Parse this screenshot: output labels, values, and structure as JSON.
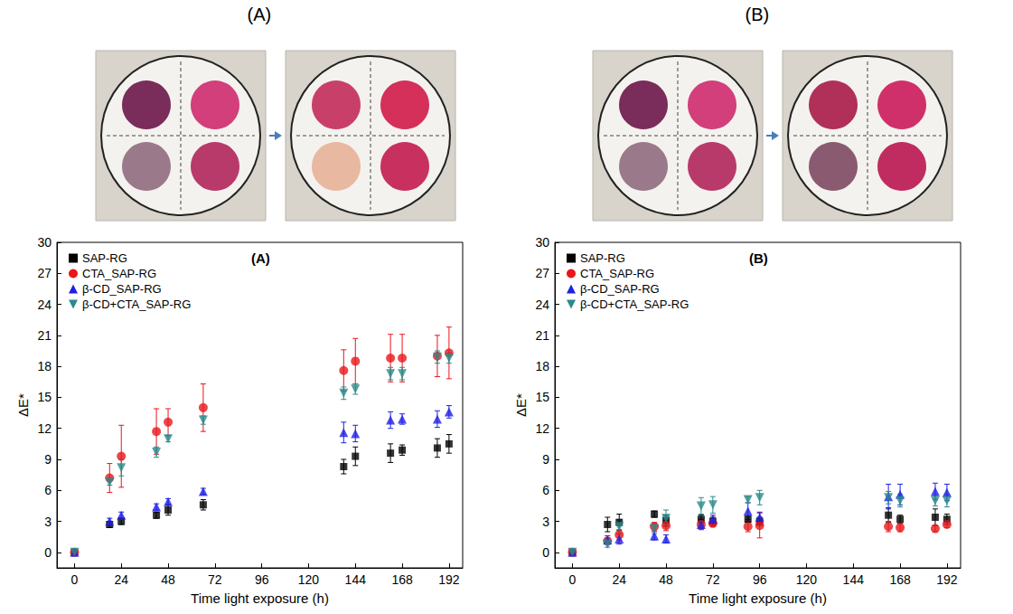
{
  "chart_data": [
    {
      "type": "scatter",
      "title": "(A)",
      "annotations": [
        "(A)"
      ],
      "x_label": "Time light exposure (h)",
      "y_label": "ΔE*",
      "x": [
        0,
        18,
        24,
        42,
        48,
        66,
        138,
        144,
        162,
        168,
        186,
        192
      ],
      "xlim": [
        -9,
        199
      ],
      "xticks": [
        0,
        24,
        48,
        72,
        96,
        120,
        144,
        168,
        192
      ],
      "ylim": [
        -1.5,
        30
      ],
      "yticks": [
        0,
        3,
        6,
        9,
        12,
        15,
        18,
        21,
        24,
        27,
        30
      ],
      "grid": false,
      "legend": "upper left",
      "series": [
        {
          "name": "SAP-RG",
          "color": "#000000",
          "marker": "square",
          "values": [
            0,
            2.7,
            3.0,
            3.6,
            4.1,
            4.6,
            8.3,
            9.3,
            9.6,
            9.9,
            10.1,
            10.5
          ],
          "errors": [
            0,
            0.3,
            0.3,
            0.3,
            0.5,
            0.5,
            0.7,
            0.9,
            0.9,
            0.5,
            0.9,
            0.9
          ]
        },
        {
          "name": "CTA_SAP-RG",
          "color": "#e8161b",
          "marker": "circle",
          "values": [
            0,
            7.2,
            9.3,
            11.7,
            12.6,
            14.0,
            17.6,
            18.5,
            18.8,
            18.8,
            19.0,
            19.3
          ],
          "errors": [
            0,
            1.4,
            3.0,
            2.2,
            1.3,
            2.3,
            2.0,
            2.2,
            2.3,
            2.3,
            2.0,
            2.5
          ]
        },
        {
          "name": "β-CD_SAP-RG",
          "color": "#1f1fe6",
          "marker": "triangle",
          "values": [
            0,
            3.0,
            3.6,
            4.4,
            4.9,
            5.9,
            11.6,
            11.5,
            12.8,
            12.9,
            12.9,
            13.6
          ],
          "errors": [
            0,
            0.3,
            0.3,
            0.3,
            0.3,
            0.3,
            1.0,
            0.8,
            0.8,
            0.5,
            0.8,
            0.6
          ]
        },
        {
          "name": "β-CD+CTA_SAP-RG",
          "color": "#2a8a8a",
          "marker": "triangle-down",
          "values": [
            0,
            6.8,
            8.2,
            9.7,
            11.0,
            12.8,
            15.4,
            15.8,
            17.3,
            17.3,
            18.9,
            18.8
          ],
          "errors": [
            0,
            0.3,
            0.8,
            0.5,
            0.3,
            0.4,
            0.6,
            0.5,
            0.6,
            0.6,
            0.6,
            0.5
          ]
        }
      ]
    },
    {
      "type": "scatter",
      "title": "(B)",
      "annotations": [
        "(B)"
      ],
      "x_label": "Time light exposure (h)",
      "y_label": "ΔE*",
      "x": [
        0,
        18,
        24,
        42,
        48,
        66,
        72,
        90,
        96,
        162,
        168,
        186,
        192
      ],
      "xlim": [
        -9,
        199
      ],
      "xticks": [
        0,
        24,
        48,
        72,
        96,
        120,
        144,
        168,
        192
      ],
      "ylim": [
        -1.5,
        30
      ],
      "yticks": [
        0,
        3,
        6,
        9,
        12,
        15,
        18,
        21,
        24,
        27,
        30
      ],
      "grid": false,
      "legend": "upper left",
      "series": [
        {
          "name": "SAP-RG",
          "color": "#000000",
          "marker": "square",
          "values": [
            0,
            2.7,
            2.9,
            3.7,
            3.1,
            3.2,
            3.0,
            3.2,
            3.0,
            3.6,
            3.2,
            3.4,
            3.2
          ],
          "errors": [
            0,
            0.7,
            0.8,
            0.3,
            0.5,
            0.4,
            0.4,
            0.3,
            0.4,
            0.7,
            0.4,
            0.8,
            0.5
          ]
        },
        {
          "name": "CTA_SAP-RG",
          "color": "#e8161b",
          "marker": "circle",
          "values": [
            0,
            1.1,
            1.7,
            2.5,
            2.6,
            2.7,
            2.8,
            2.5,
            2.6,
            2.5,
            2.4,
            2.3,
            2.7
          ],
          "errors": [
            0,
            0.3,
            0.5,
            0.4,
            0.5,
            0.4,
            0.3,
            0.5,
            1.2,
            0.5,
            0.4,
            0.3,
            0.3
          ]
        },
        {
          "name": "β-CD_SAP-RG",
          "color": "#1f1fe6",
          "marker": "triangle",
          "values": [
            0,
            1.2,
            1.3,
            1.6,
            1.3,
            2.7,
            3.2,
            4.0,
            3.4,
            5.4,
            5.6,
            5.9,
            5.8
          ],
          "errors": [
            0,
            0.4,
            0.5,
            0.4,
            0.4,
            0.5,
            0.4,
            0.8,
            0.5,
            1.2,
            1.0,
            0.8,
            0.8
          ]
        },
        {
          "name": "β-CD+CTA_SAP-RG",
          "color": "#2a8a8a",
          "marker": "triangle-down",
          "values": [
            0,
            0.8,
            2.5,
            2.3,
            3.3,
            4.5,
            4.6,
            5.1,
            5.3,
            5.3,
            5.0,
            5.0,
            5.0
          ],
          "errors": [
            0,
            0.3,
            0.7,
            0.5,
            0.8,
            0.8,
            0.8,
            0.3,
            0.7,
            0.6,
            0.6,
            0.5,
            0.6
          ]
        }
      ]
    }
  ]
}
